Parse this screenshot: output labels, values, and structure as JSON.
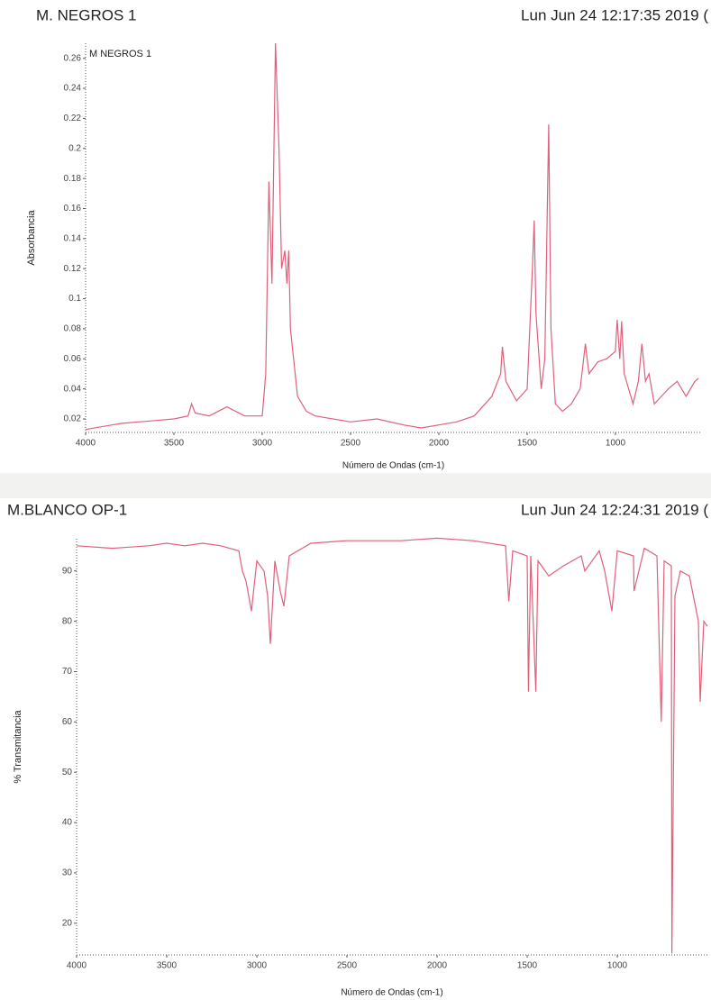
{
  "chart_data": [
    {
      "type": "line",
      "title": "M. NEGROS 1",
      "subtitle": "Lun Jun 24 12:17:35 2019 (",
      "x_label": "Número de Ondas (cm-1)",
      "y_label": "Absorbancia",
      "xlim": [
        4000,
        515
      ],
      "ylim": [
        0.011,
        0.27
      ],
      "xticks": [
        4000,
        3500,
        3000,
        2500,
        2000,
        1500,
        1000
      ],
      "yticks": [
        0.02,
        0.04,
        0.06,
        0.08,
        0.1,
        0.12,
        0.14,
        0.16,
        0.18,
        0.2,
        0.22,
        0.24,
        0.26
      ],
      "x": [
        4000,
        3800,
        3700,
        3600,
        3500,
        3420,
        3400,
        3380,
        3300,
        3200,
        3100,
        3000,
        2980,
        2962,
        2945,
        2925,
        2905,
        2890,
        2872,
        2860,
        2850,
        2840,
        2800,
        2750,
        2700,
        2500,
        2350,
        2200,
        2100,
        2000,
        1900,
        1800,
        1700,
        1650,
        1640,
        1620,
        1560,
        1500,
        1470,
        1460,
        1450,
        1420,
        1400,
        1378,
        1365,
        1340,
        1300,
        1250,
        1200,
        1170,
        1150,
        1100,
        1050,
        1000,
        990,
        975,
        965,
        950,
        900,
        870,
        850,
        830,
        810,
        780,
        740,
        700,
        650,
        600,
        550,
        530
      ],
      "series": [
        {
          "name": "M NEGROS 1",
          "color": "#e0607a",
          "values": [
            0.013,
            0.017,
            0.018,
            0.019,
            0.02,
            0.022,
            0.03,
            0.024,
            0.022,
            0.028,
            0.022,
            0.022,
            0.05,
            0.178,
            0.11,
            0.27,
            0.2,
            0.12,
            0.132,
            0.11,
            0.132,
            0.08,
            0.035,
            0.025,
            0.022,
            0.018,
            0.02,
            0.016,
            0.014,
            0.016,
            0.018,
            0.022,
            0.035,
            0.05,
            0.068,
            0.045,
            0.032,
            0.04,
            0.12,
            0.152,
            0.09,
            0.04,
            0.06,
            0.216,
            0.08,
            0.03,
            0.025,
            0.03,
            0.04,
            0.07,
            0.05,
            0.058,
            0.06,
            0.065,
            0.086,
            0.06,
            0.085,
            0.05,
            0.03,
            0.045,
            0.07,
            0.045,
            0.05,
            0.03,
            0.035,
            0.04,
            0.045,
            0.035,
            0.045,
            0.047
          ]
        }
      ]
    },
    {
      "type": "line",
      "title": "M.BLANCO OP-1",
      "subtitle": "Lun Jun 24 12:24:31 2019 (",
      "x_label": "Número de Ondas (cm-1)",
      "y_label": "% Transmitancia",
      "xlim": [
        4000,
        500
      ],
      "ylim": [
        13.7,
        96.4
      ],
      "xticks": [
        4000,
        3500,
        3000,
        2500,
        2000,
        1500,
        1000
      ],
      "yticks": [
        20,
        30,
        40,
        50,
        60,
        70,
        80,
        90
      ],
      "x": [
        4000,
        3800,
        3600,
        3500,
        3400,
        3300,
        3200,
        3100,
        3080,
        3060,
        3030,
        3000,
        2960,
        2940,
        2925,
        2900,
        2870,
        2850,
        2820,
        2700,
        2500,
        2200,
        2000,
        1800,
        1620,
        1602,
        1580,
        1500,
        1493,
        1480,
        1452,
        1440,
        1380,
        1300,
        1200,
        1180,
        1100,
        1070,
        1030,
        1000,
        910,
        907,
        850,
        780,
        756,
        740,
        700,
        697,
        680,
        650,
        600,
        550,
        540,
        520,
        500
      ],
      "series": [
        {
          "color": "#e0607a",
          "values": [
            95,
            94.5,
            95,
            95.5,
            95,
            95.5,
            95,
            94,
            90,
            88,
            82,
            92,
            90,
            85,
            75.5,
            92,
            86,
            83,
            93,
            95.5,
            96,
            96,
            96.5,
            96,
            95,
            84,
            94,
            93,
            66,
            93,
            66,
            92,
            89,
            91,
            93,
            90,
            94,
            90,
            82,
            94,
            93,
            86,
            94.5,
            93,
            60,
            92,
            91,
            14,
            85,
            90,
            89,
            80,
            64,
            80,
            79
          ]
        }
      ]
    }
  ]
}
